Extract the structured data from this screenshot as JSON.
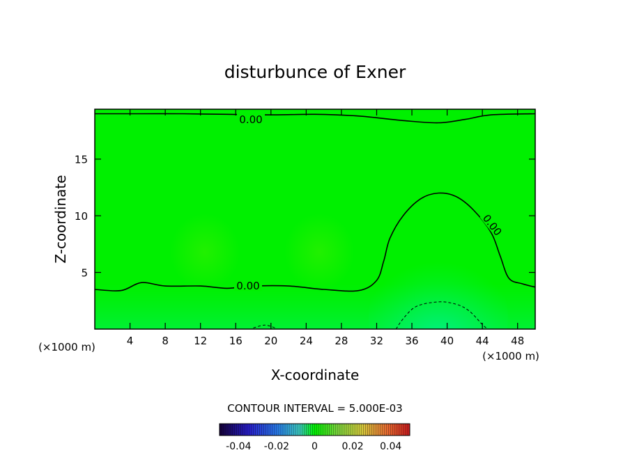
{
  "chart_data": {
    "type": "heatmap",
    "title": "disturbunce of Exner",
    "xlabel": "X-coordinate",
    "ylabel": "Z-coordinate",
    "x_unit_left": "(×1000 m)",
    "x_unit_right": "(×1000 m)",
    "xlim": [
      0,
      50
    ],
    "ylim": [
      0,
      19.4
    ],
    "x_ticks": [
      4,
      8,
      12,
      16,
      20,
      24,
      28,
      32,
      36,
      40,
      44,
      48
    ],
    "x_tick_labels": [
      "4",
      "8",
      "12",
      "16",
      "20",
      "24",
      "28",
      "32",
      "36",
      "40",
      "44",
      "48"
    ],
    "y_ticks": [
      5,
      10,
      15
    ],
    "y_tick_labels": [
      "5",
      "10",
      "15"
    ],
    "contour_interval_text": "CONTOUR INTERVAL = 5.000E-03",
    "contour_labels": [
      "0.00",
      "0.00",
      "0.00"
    ],
    "colorbar": {
      "range": [
        -0.05,
        0.05
      ],
      "ticks": [
        -0.04,
        -0.02,
        0,
        0.02,
        0.04
      ],
      "tick_labels": [
        "-0.04",
        "-0.02",
        "0",
        "0.02",
        "0.04"
      ]
    },
    "contours": [
      {
        "level": 0.0,
        "style": "solid",
        "label": "0.00",
        "points": [
          [
            0,
            19.0
          ],
          [
            5,
            19.0
          ],
          [
            10,
            19.0
          ],
          [
            15,
            18.95
          ],
          [
            20,
            18.9
          ],
          [
            25,
            18.95
          ],
          [
            30,
            18.8
          ],
          [
            35,
            18.4
          ],
          [
            39,
            18.2
          ],
          [
            42,
            18.5
          ],
          [
            45,
            18.9
          ],
          [
            50,
            19.0
          ]
        ]
      },
      {
        "level": 0.0,
        "style": "solid",
        "label": "0.00",
        "points": [
          [
            0,
            3.5
          ],
          [
            3,
            3.4
          ],
          [
            5.3,
            4.1
          ],
          [
            8,
            3.8
          ],
          [
            12,
            3.8
          ],
          [
            15,
            3.6
          ],
          [
            18,
            3.8
          ],
          [
            22,
            3.8
          ],
          [
            26,
            3.5
          ],
          [
            30,
            3.4
          ],
          [
            32,
            4.3
          ],
          [
            32.8,
            6.0
          ],
          [
            33.5,
            8.0
          ],
          [
            35,
            10.0
          ],
          [
            37,
            11.5
          ],
          [
            39,
            12.0
          ],
          [
            41,
            11.7
          ],
          [
            43,
            10.5
          ],
          [
            45,
            8.5
          ],
          [
            46,
            6.5
          ],
          [
            47,
            4.5
          ],
          [
            48.5,
            4.0
          ],
          [
            50,
            3.7
          ]
        ]
      },
      {
        "level": -0.005,
        "style": "dashed",
        "label": "",
        "points": [
          [
            34.2,
            0.0
          ],
          [
            35,
            0.9
          ],
          [
            36.5,
            2.0
          ],
          [
            39,
            2.4
          ],
          [
            41,
            2.2
          ],
          [
            42.5,
            1.6
          ],
          [
            44,
            0.4
          ],
          [
            44.6,
            0.0
          ]
        ]
      },
      {
        "level": -0.005,
        "style": "dashed",
        "label": "",
        "points": [
          [
            18,
            0.1
          ],
          [
            19.3,
            0.35
          ],
          [
            20.5,
            0.1
          ]
        ]
      }
    ],
    "field_features": [
      {
        "kind": "positive-bump",
        "x": 12.5,
        "y": 6.8,
        "strength": 0.3
      },
      {
        "kind": "positive-bump",
        "x": 25.5,
        "y": 6.8,
        "strength": 0.3
      },
      {
        "kind": "negative-pool",
        "x": 39,
        "y": 1.0,
        "strength": 0.6
      }
    ]
  }
}
